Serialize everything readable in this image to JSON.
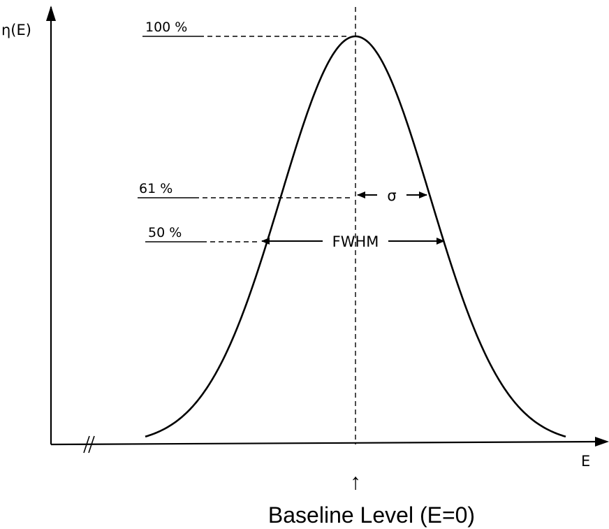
{
  "axes": {
    "y_label": "η(E)",
    "x_label": "E"
  },
  "levels": {
    "peak": "100 %",
    "sigma_level": "61 %",
    "half_max": "50 %"
  },
  "annotations": {
    "sigma": "σ",
    "fwhm": "FWHM",
    "baseline_arrow": "↑",
    "baseline_caption": "Baseline Level (E=0)"
  },
  "icons": {
    "axis_break": "axis-break-icon"
  }
}
